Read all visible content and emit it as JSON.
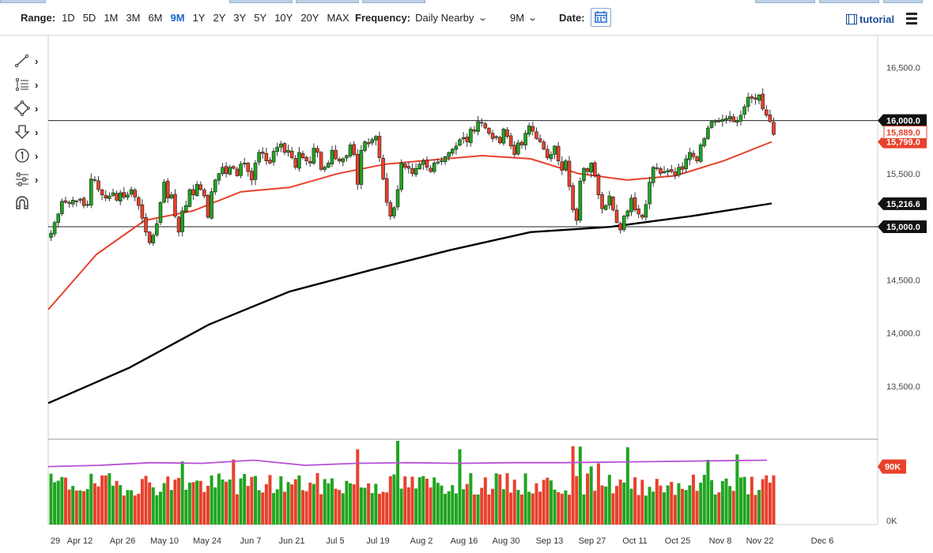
{
  "toolbar": {
    "range_label": "Range:",
    "ranges": [
      "1D",
      "5D",
      "1M",
      "3M",
      "6M",
      "9M",
      "1Y",
      "2Y",
      "3Y",
      "5Y",
      "10Y",
      "20Y",
      "MAX"
    ],
    "active_range": "9M",
    "frequency_label": "Frequency:",
    "frequency_value": "Daily Nearby",
    "period_value": "9M",
    "date_label": "Date:",
    "tutorial_label": "tutorial"
  },
  "drawing_tools": [
    "trendline-icon",
    "fibonacci-icon",
    "shapes-icon",
    "arrow-icon",
    "number-marker-icon",
    "pitchfork-icon",
    "magnet-icon"
  ],
  "colors": {
    "up": "#1fa51f",
    "down": "#e8412c",
    "ma_fast": "#e8412c",
    "ma_slow": "#000000",
    "volume_avg": "#b84fd6",
    "accent": "#1a66cc"
  },
  "chart_data": {
    "type": "candlestick",
    "x_tick_labels": [
      "29",
      "Apr 12",
      "Apr 26",
      "May 10",
      "May 24",
      "Jun 7",
      "Jun 21",
      "Jul 5",
      "Jul 19",
      "Aug 2",
      "Aug 16",
      "Aug 30",
      "Sep 13",
      "Sep 27",
      "Oct 11",
      "Oct 25",
      "Nov 8",
      "Nov 22",
      "Dec 6"
    ],
    "price_axis": {
      "ticks": [
        "16,500.0",
        "15,500.0",
        "14,500.0",
        "14,000.0",
        "13,500.0"
      ],
      "ylim": [
        13000,
        16800
      ]
    },
    "horizontal_lines": [
      {
        "value": 16000,
        "label": "16,000.0"
      },
      {
        "value": 15000,
        "label": "15,000.0"
      }
    ],
    "price_badges": [
      {
        "label": "15,889.0",
        "value": 15889,
        "style": "down"
      },
      {
        "label": "15,799.0",
        "value": 15799,
        "style": "down-partial"
      },
      {
        "label": "15,216.6",
        "value": 15216.6,
        "style": "neutral"
      }
    ],
    "series": [
      {
        "name": "candles",
        "close": [
          14940,
          15040,
          15120,
          15240,
          15230,
          15220,
          15250,
          15240,
          15260,
          15200,
          15210,
          15450,
          15440,
          15350,
          15300,
          15270,
          15290,
          15320,
          15250,
          15320,
          15280,
          15300,
          15350,
          15280,
          15200,
          15080,
          14950,
          14850,
          14920,
          15030,
          15230,
          15420,
          15270,
          15300,
          15100,
          14950,
          15150,
          15200,
          15350,
          15300,
          15400,
          15350,
          15290,
          15090,
          15330,
          15440,
          15500,
          15560,
          15500,
          15560,
          15550,
          15480,
          15590,
          15600,
          15520,
          15440,
          15600,
          15700,
          15690,
          15620,
          15600,
          15710,
          15750,
          15780,
          15700,
          15720,
          15650,
          15560,
          15700,
          15650,
          15620,
          15600,
          15740,
          15700,
          15540,
          15560,
          15600,
          15720,
          15640,
          15620,
          15640,
          15670,
          15770,
          15680,
          15400,
          15720,
          15800,
          15780,
          15820,
          15850,
          15650,
          15450,
          15230,
          15100,
          15180,
          15350,
          15600,
          15560,
          15550,
          15500,
          15550,
          15590,
          15620,
          15560,
          15520,
          15600,
          15610,
          15620,
          15660,
          15700,
          15730,
          15760,
          15820,
          15840,
          15800,
          15920,
          15900,
          15990,
          15980,
          15930,
          15880,
          15830,
          15850,
          15790,
          15920,
          15850,
          15760,
          15680,
          15790,
          15770,
          15880,
          15950,
          15900,
          15830,
          15800,
          15730,
          15650,
          15680,
          15760,
          15620,
          15530,
          15620,
          15380,
          15160,
          15060,
          15430,
          15550,
          15520,
          15600,
          15480,
          15300,
          15170,
          15200,
          15290,
          15160,
          15040,
          14970,
          15100,
          15150,
          15270,
          15160,
          15120,
          15090,
          15210,
          15420,
          15560,
          15550,
          15500,
          15520,
          15530,
          15520,
          15480,
          15560,
          15540,
          15640,
          15700,
          15660,
          15620,
          15770,
          15830,
          15930,
          15990,
          16000,
          15990,
          16010,
          16020,
          16040,
          15990,
          16000,
          16050,
          16130,
          16220,
          16210,
          16200,
          16240,
          16110,
          16050,
          15990,
          15870
        ]
      },
      {
        "name": "MA fast",
        "values": [
          14220,
          14740,
          15060,
          15150,
          15330,
          15370,
          15500,
          15590,
          15630,
          15670,
          15640,
          15500,
          15440,
          15480,
          15620,
          15800
        ]
      },
      {
        "name": "MA slow",
        "values": [
          13340,
          13670,
          14080,
          14390,
          14590,
          14780,
          14950,
          15000,
          15100,
          15220
        ]
      }
    ],
    "volume": {
      "axis_labels": [
        "90K",
        "0K"
      ],
      "ylim": [
        0,
        130000
      ],
      "average_line": [
        90000,
        92000,
        96000,
        95000,
        100000,
        92000,
        95000,
        96000,
        95000,
        96000,
        96000,
        97000,
        98000,
        99000,
        100000
      ]
    }
  }
}
